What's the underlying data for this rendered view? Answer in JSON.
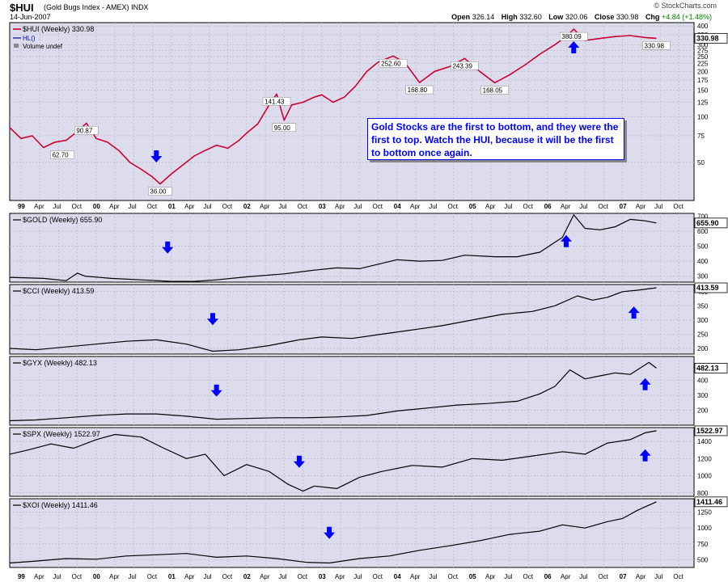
{
  "header": {
    "symbol": "$HUI",
    "name": "(Gold Bugs Index - AMEX)",
    "exchange": "INDX",
    "date": "14-Jun-2007",
    "watermark": "© StockCharts.com",
    "open_label": "Open",
    "open": "326.14",
    "high_label": "High",
    "high": "332.60",
    "low_label": "Low",
    "low": "320.06",
    "close_label": "Close",
    "close": "330.98",
    "chg_label": "Chg",
    "chg": "+4.84 (+1.48%)",
    "chg_color": "#008000"
  },
  "annotation": "Gold Stocks are the first to bottom, and they were the first to top. Watch the HUI, because it will be the first to bottom once again.",
  "colors": {
    "hui_line": "#cc0033",
    "line": "#000000",
    "arrow": "#0000ff",
    "panel_bg": "#dcdcec",
    "grid": "#b8b8cc"
  },
  "chart_data": [
    {
      "type": "line",
      "title": "$HUI (Weekly) 330.98",
      "legend": [
        "$HUI (Weekly) 330.98",
        "HL()",
        "Volume undef"
      ],
      "scale": "log",
      "ylim": [
        28,
        420
      ],
      "yticks": [
        50,
        75,
        100,
        125,
        150,
        175,
        200,
        225,
        250,
        275,
        300,
        350,
        400
      ],
      "last_value_label": "330.98",
      "labels": [
        {
          "x": 1999.55,
          "y": 62.7,
          "text": "62.70"
        },
        {
          "x": 1999.87,
          "y": 90.87,
          "text": "90.87"
        },
        {
          "x": 2000.85,
          "y": 36.0,
          "text": "36.00"
        },
        {
          "x": 2002.4,
          "y": 141.43,
          "text": "141.43"
        },
        {
          "x": 2002.5,
          "y": 95.0,
          "text": "95.00"
        },
        {
          "x": 2003.95,
          "y": 252.6,
          "text": "252.60"
        },
        {
          "x": 2004.3,
          "y": 168.8,
          "text": "168.80"
        },
        {
          "x": 2004.9,
          "y": 243.39,
          "text": "243.39"
        },
        {
          "x": 2005.3,
          "y": 168.05,
          "text": "168.05"
        },
        {
          "x": 2006.35,
          "y": 380.09,
          "text": "380.09"
        },
        {
          "x": 2007.45,
          "y": 330.98,
          "text": "330.98"
        }
      ],
      "arrows": [
        {
          "x": 2000.8,
          "dir": "down"
        },
        {
          "x": 2006.35,
          "dir": "up"
        }
      ],
      "x": [
        1998.85,
        1999.0,
        1999.15,
        1999.3,
        1999.45,
        1999.6,
        1999.75,
        1999.87,
        2000.0,
        2000.15,
        2000.3,
        2000.45,
        2000.6,
        2000.75,
        2000.85,
        2001.0,
        2001.15,
        2001.3,
        2001.45,
        2001.6,
        2001.75,
        2001.9,
        2002.0,
        2002.15,
        2002.3,
        2002.4,
        2002.5,
        2002.6,
        2002.75,
        2002.9,
        2003.0,
        2003.15,
        2003.3,
        2003.45,
        2003.6,
        2003.75,
        2003.95,
        2004.1,
        2004.3,
        2004.5,
        2004.7,
        2004.9,
        2005.1,
        2005.3,
        2005.5,
        2005.7,
        2005.9,
        2006.1,
        2006.25,
        2006.35,
        2006.5,
        2006.7,
        2006.9,
        2007.1,
        2007.3,
        2007.45
      ],
      "values": [
        85,
        72,
        75,
        62.7,
        68,
        70,
        80,
        90.87,
        72,
        68,
        60,
        50,
        45,
        40,
        36,
        42,
        48,
        55,
        60,
        65,
        62,
        70,
        78,
        90,
        120,
        141.43,
        95,
        120,
        125,
        135,
        140,
        125,
        135,
        160,
        200,
        230,
        252.6,
        230,
        168.8,
        200,
        215,
        243.39,
        200,
        168.05,
        190,
        220,
        260,
        300,
        340,
        380.09,
        320,
        330,
        340,
        345,
        335,
        330.98
      ]
    },
    {
      "type": "line",
      "title": "$GOLD (Weekly) 655.90",
      "ylim": [
        260,
        720
      ],
      "yticks": [
        300,
        400,
        500,
        600,
        700
      ],
      "last_value_label": "655.90",
      "arrows": [
        {
          "x": 2000.95,
          "dir": "down"
        },
        {
          "x": 2006.25,
          "dir": "up"
        }
      ],
      "x": [
        1998.85,
        1999.3,
        1999.6,
        1999.75,
        1999.85,
        2000.2,
        2000.6,
        2001.0,
        2001.3,
        2001.6,
        2002.0,
        2002.5,
        2002.9,
        2003.2,
        2003.5,
        2004.0,
        2004.3,
        2004.6,
        2004.9,
        2005.3,
        2005.6,
        2005.9,
        2006.2,
        2006.35,
        2006.5,
        2006.7,
        2006.9,
        2007.1,
        2007.3,
        2007.45
      ],
      "values": [
        292,
        285,
        270,
        320,
        300,
        285,
        275,
        265,
        265,
        275,
        295,
        315,
        340,
        355,
        350,
        410,
        400,
        405,
        440,
        430,
        430,
        460,
        560,
        710,
        620,
        610,
        630,
        680,
        670,
        655.9
      ]
    },
    {
      "type": "line",
      "title": "$CCI (Weekly) 413.59",
      "ylim": [
        180,
        425
      ],
      "yticks": [
        200,
        250,
        300,
        350,
        400
      ],
      "last_value_label": "413.59",
      "arrows": [
        {
          "x": 2001.55,
          "dir": "down"
        },
        {
          "x": 2007.15,
          "dir": "up"
        }
      ],
      "x": [
        1998.85,
        1999.2,
        1999.6,
        2000.0,
        2000.4,
        2000.8,
        2001.2,
        2001.55,
        2001.9,
        2002.3,
        2002.7,
        2003.0,
        2003.4,
        2003.8,
        2004.2,
        2004.6,
        2005.0,
        2005.4,
        2005.8,
        2006.1,
        2006.4,
        2006.6,
        2006.8,
        2007.0,
        2007.2,
        2007.45
      ],
      "values": [
        200,
        195,
        205,
        215,
        225,
        230,
        215,
        190,
        195,
        210,
        230,
        240,
        235,
        250,
        265,
        280,
        300,
        320,
        330,
        350,
        385,
        370,
        380,
        400,
        405,
        413.59
      ]
    },
    {
      "type": "line",
      "title": "$GYX (Weekly) 482.13",
      "ylim": [
        100,
        560
      ],
      "yticks": [
        200,
        300,
        400
      ],
      "last_value_label": "482.13",
      "arrows": [
        {
          "x": 2001.6,
          "dir": "down"
        },
        {
          "x": 2007.3,
          "dir": "up"
        }
      ],
      "x": [
        1998.85,
        1999.2,
        1999.6,
        2000.0,
        2000.4,
        2000.8,
        2001.2,
        2001.6,
        2002.0,
        2002.4,
        2002.8,
        2003.2,
        2003.6,
        2004.0,
        2004.4,
        2004.8,
        2005.2,
        2005.6,
        2005.9,
        2006.1,
        2006.3,
        2006.5,
        2006.7,
        2006.9,
        2007.1,
        2007.35,
        2007.45
      ],
      "values": [
        130,
        135,
        150,
        165,
        175,
        175,
        160,
        140,
        145,
        150,
        150,
        155,
        165,
        195,
        215,
        235,
        245,
        260,
        310,
        360,
        470,
        410,
        430,
        450,
        440,
        520,
        482.13
      ]
    },
    {
      "type": "line",
      "title": "$SPX (Weekly) 1522.97",
      "ylim": [
        760,
        1560
      ],
      "yticks": [
        800,
        1000,
        1200,
        1400
      ],
      "last_value_label": "1522.97",
      "arrows": [
        {
          "x": 2002.7,
          "dir": "down"
        },
        {
          "x": 2007.3,
          "dir": "up"
        }
      ],
      "x": [
        1998.85,
        1999.1,
        1999.4,
        1999.7,
        2000.0,
        2000.25,
        2000.6,
        2000.9,
        2001.2,
        2001.45,
        2001.7,
        2002.0,
        2002.3,
        2002.55,
        2002.75,
        2002.9,
        2003.2,
        2003.5,
        2003.8,
        2004.2,
        2004.6,
        2005.0,
        2005.4,
        2005.8,
        2006.2,
        2006.5,
        2006.8,
        2007.1,
        2007.3,
        2007.45
      ],
      "values": [
        1250,
        1300,
        1370,
        1320,
        1420,
        1480,
        1450,
        1320,
        1200,
        1250,
        1000,
        1130,
        1050,
        900,
        820,
        880,
        850,
        980,
        1050,
        1120,
        1100,
        1200,
        1180,
        1230,
        1280,
        1250,
        1380,
        1420,
        1500,
        1522.97
      ]
    },
    {
      "type": "line",
      "title": "$XOI (Weekly) 1411.46",
      "ylim": [
        380,
        1460
      ],
      "yticks": [
        500,
        750,
        1000,
        1250
      ],
      "last_value_label": "1411.46",
      "arrows": [
        {
          "x": 2003.1,
          "dir": "down"
        }
      ],
      "x": [
        1998.85,
        1999.2,
        1999.6,
        2000.0,
        2000.4,
        2000.8,
        2001.2,
        2001.6,
        2002.0,
        2002.4,
        2002.8,
        2003.1,
        2003.5,
        2003.9,
        2004.3,
        2004.7,
        2005.1,
        2005.5,
        2005.9,
        2006.2,
        2006.5,
        2006.8,
        2007.0,
        2007.2,
        2007.45
      ],
      "values": [
        450,
        480,
        520,
        510,
        560,
        580,
        600,
        540,
        560,
        520,
        460,
        450,
        520,
        560,
        650,
        720,
        800,
        900,
        950,
        1050,
        1000,
        1100,
        1150,
        1280,
        1411.46
      ]
    }
  ],
  "x_axis": {
    "range": [
      1998.85,
      2007.95
    ],
    "ticks": [
      {
        "x": 1999.0,
        "label": "99",
        "bold": true
      },
      {
        "x": 1999.25,
        "label": "Apr",
        "bold": false
      },
      {
        "x": 1999.5,
        "label": "Jul",
        "bold": false
      },
      {
        "x": 1999.75,
        "label": "Oct",
        "bold": false
      },
      {
        "x": 2000.0,
        "label": "00",
        "bold": true
      },
      {
        "x": 2000.25,
        "label": "Apr",
        "bold": false
      },
      {
        "x": 2000.5,
        "label": "Jul",
        "bold": false
      },
      {
        "x": 2000.75,
        "label": "Oct",
        "bold": false
      },
      {
        "x": 2001.0,
        "label": "01",
        "bold": true
      },
      {
        "x": 2001.25,
        "label": "Apr",
        "bold": false
      },
      {
        "x": 2001.5,
        "label": "Jul",
        "bold": false
      },
      {
        "x": 2001.75,
        "label": "Oct",
        "bold": false
      },
      {
        "x": 2002.0,
        "label": "02",
        "bold": true
      },
      {
        "x": 2002.25,
        "label": "Apr",
        "bold": false
      },
      {
        "x": 2002.5,
        "label": "Jul",
        "bold": false
      },
      {
        "x": 2002.75,
        "label": "Oct",
        "bold": false
      },
      {
        "x": 2003.0,
        "label": "03",
        "bold": true
      },
      {
        "x": 2003.25,
        "label": "Apr",
        "bold": false
      },
      {
        "x": 2003.5,
        "label": "Jul",
        "bold": false
      },
      {
        "x": 2003.75,
        "label": "Oct",
        "bold": false
      },
      {
        "x": 2004.0,
        "label": "04",
        "bold": true
      },
      {
        "x": 2004.25,
        "label": "Apr",
        "bold": false
      },
      {
        "x": 2004.5,
        "label": "Jul",
        "bold": false
      },
      {
        "x": 2004.75,
        "label": "Oct",
        "bold": false
      },
      {
        "x": 2005.0,
        "label": "05",
        "bold": true
      },
      {
        "x": 2005.25,
        "label": "Apr",
        "bold": false
      },
      {
        "x": 2005.5,
        "label": "Jul",
        "bold": false
      },
      {
        "x": 2005.75,
        "label": "Oct",
        "bold": false
      },
      {
        "x": 2006.0,
        "label": "06",
        "bold": true
      },
      {
        "x": 2006.25,
        "label": "Apr",
        "bold": false
      },
      {
        "x": 2006.5,
        "label": "Jul",
        "bold": false
      },
      {
        "x": 2006.75,
        "label": "Oct",
        "bold": false
      },
      {
        "x": 2007.0,
        "label": "07",
        "bold": true
      },
      {
        "x": 2007.25,
        "label": "Apr",
        "bold": false
      },
      {
        "x": 2007.5,
        "label": "Jul",
        "bold": false
      },
      {
        "x": 2007.75,
        "label": "Oct",
        "bold": false
      }
    ]
  }
}
